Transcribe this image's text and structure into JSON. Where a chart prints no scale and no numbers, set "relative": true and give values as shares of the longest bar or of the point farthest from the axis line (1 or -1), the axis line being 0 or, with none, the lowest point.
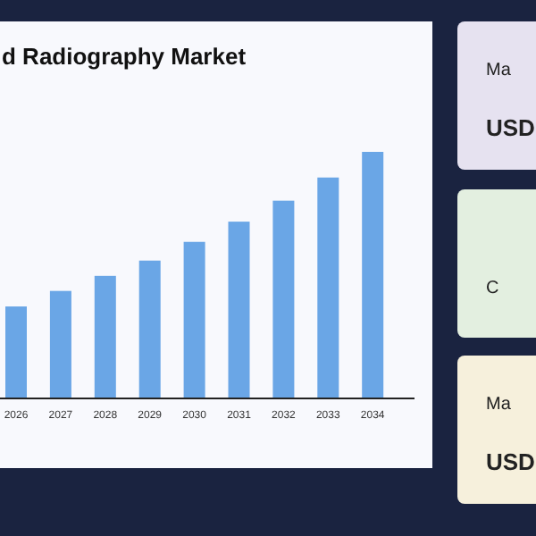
{
  "chart_data": {
    "type": "bar",
    "title": "d Radiography Market",
    "categories": [
      "2026",
      "2027",
      "2028",
      "2029",
      "2030",
      "2031",
      "2032",
      "2033",
      "2034"
    ],
    "values": [
      0.373,
      0.436,
      0.497,
      0.559,
      0.635,
      0.717,
      0.802,
      0.896,
      1
    ],
    "color": "#6aa6e6",
    "relative": true,
    "annotations": [
      "Ma",
      "USD",
      "C",
      "Ma",
      "USD"
    ]
  }
}
